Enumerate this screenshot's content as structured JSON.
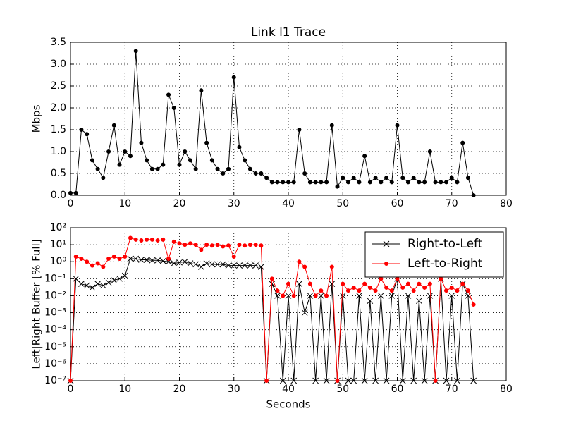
{
  "chart_data": [
    {
      "type": "line",
      "title": "Link l1 Trace",
      "y_label": "Mbps",
      "x": [
        0,
        1,
        2,
        3,
        4,
        5,
        6,
        7,
        8,
        9,
        10,
        11,
        12,
        13,
        14,
        15,
        16,
        17,
        18,
        19,
        20,
        21,
        22,
        23,
        24,
        25,
        26,
        27,
        28,
        29,
        30,
        31,
        32,
        33,
        34,
        35,
        36,
        37,
        38,
        39,
        40,
        41,
        42,
        43,
        44,
        45,
        46,
        47,
        48,
        49,
        50,
        51,
        52,
        53,
        54,
        55,
        56,
        57,
        58,
        59,
        60,
        61,
        62,
        63,
        64,
        65,
        66,
        67,
        68,
        69,
        70,
        71,
        72,
        73,
        74
      ],
      "values": [
        0.05,
        0.05,
        1.5,
        1.4,
        0.8,
        0.6,
        0.4,
        1.0,
        1.6,
        0.7,
        1.0,
        0.9,
        3.3,
        1.2,
        0.8,
        0.6,
        0.6,
        0.7,
        2.3,
        2.0,
        0.7,
        1.0,
        0.8,
        0.6,
        2.4,
        1.2,
        0.8,
        0.6,
        0.5,
        0.6,
        2.7,
        1.1,
        0.8,
        0.6,
        0.5,
        0.5,
        0.4,
        0.3,
        0.3,
        0.3,
        0.3,
        0.3,
        1.5,
        0.5,
        0.3,
        0.3,
        0.3,
        0.3,
        1.6,
        0.2,
        0.4,
        0.3,
        0.4,
        0.3,
        0.9,
        0.3,
        0.4,
        0.3,
        0.4,
        0.3,
        1.6,
        0.4,
        0.3,
        0.4,
        0.3,
        0.3,
        1.0,
        0.3,
        0.3,
        0.3,
        0.4,
        0.3,
        1.2,
        0.4,
        0.0
      ],
      "color": "#000000",
      "xlim": [
        0,
        80
      ],
      "xticks": [
        0,
        10,
        20,
        30,
        40,
        50,
        60,
        70,
        80
      ],
      "ylim": [
        0,
        3.5
      ],
      "yticks": [
        {
          "value": 0,
          "label": "0.0"
        },
        0.5,
        {
          "value": 1,
          "label": "1.0"
        },
        1.5,
        {
          "value": 2,
          "label": "2.0"
        },
        2.5,
        {
          "value": 3,
          "label": "3.0"
        },
        3.5
      ],
      "grid": true
    },
    {
      "type": "line",
      "x_label": "Seconds",
      "y_label": "Left|Right Buffer [% Full]",
      "x": [
        0,
        1,
        2,
        3,
        4,
        5,
        6,
        7,
        8,
        9,
        10,
        11,
        12,
        13,
        14,
        15,
        16,
        17,
        18,
        19,
        20,
        21,
        22,
        23,
        24,
        25,
        26,
        27,
        28,
        29,
        30,
        31,
        32,
        33,
        34,
        35,
        36,
        37,
        38,
        39,
        40,
        41,
        42,
        43,
        44,
        45,
        46,
        47,
        48,
        49,
        50,
        51,
        52,
        53,
        54,
        55,
        56,
        57,
        58,
        59,
        60,
        61,
        62,
        63,
        64,
        65,
        66,
        67,
        68,
        69,
        70,
        71,
        72,
        73,
        74
      ],
      "series": [
        {
          "name": "Right-to-Left",
          "color": "#000000",
          "marker": "x",
          "values": [
            1e-07,
            0.1,
            0.05,
            0.04,
            0.03,
            0.05,
            0.04,
            0.06,
            0.08,
            0.1,
            0.15,
            1.5,
            1.5,
            1.3,
            1.3,
            1.2,
            1.2,
            1.1,
            1.0,
            0.8,
            0.9,
            1.0,
            0.8,
            0.7,
            0.5,
            0.8,
            0.7,
            0.7,
            0.7,
            0.6,
            0.6,
            0.6,
            0.6,
            0.6,
            0.6,
            0.5,
            1e-07,
            0.05,
            0.01,
            1e-07,
            0.01,
            1e-07,
            0.05,
            0.001,
            0.01,
            1e-07,
            0.01,
            1e-07,
            0.05,
            1e-07,
            0.01,
            1e-07,
            1e-07,
            0.01,
            1e-07,
            0.005,
            1e-07,
            0.01,
            1e-07,
            0.01,
            0.1,
            1e-07,
            0.01,
            1e-07,
            0.005,
            1e-07,
            0.01,
            1e-07,
            0.1,
            1e-07,
            0.01,
            1e-07,
            0.05,
            0.01,
            1e-07
          ]
        },
        {
          "name": "Left-to-Right",
          "color": "#ff0000",
          "marker": "dot",
          "values": [
            1e-07,
            2,
            1.5,
            1,
            0.6,
            0.8,
            0.5,
            1.5,
            2,
            1.5,
            2,
            25,
            20,
            18,
            20,
            20,
            18,
            20,
            1.5,
            15,
            12,
            10,
            12,
            10,
            5,
            10,
            9,
            10,
            8,
            9,
            2,
            10,
            9,
            10,
            10,
            9,
            1e-07,
            0.1,
            0.02,
            0.01,
            0.05,
            0.01,
            1,
            0.5,
            0.05,
            0.01,
            0.02,
            0.01,
            0.5,
            1e-07,
            0.05,
            0.02,
            0.03,
            0.02,
            0.05,
            0.03,
            0.02,
            0.1,
            0.03,
            0.02,
            0.1,
            0.03,
            0.05,
            0.02,
            0.05,
            0.03,
            0.05,
            1e-07,
            0.1,
            0.02,
            0.03,
            0.02,
            0.05,
            0.02,
            0.003
          ]
        }
      ],
      "xlim": [
        0,
        80
      ],
      "xticks": [
        0,
        10,
        20,
        30,
        40,
        50,
        60,
        70,
        80
      ],
      "ylim": [
        1e-07,
        100
      ],
      "log_scale": true,
      "yticks": [
        {
          "value": 1e-07,
          "label": "10⁻⁷"
        },
        {
          "value": 1e-06,
          "label": "10⁻⁶"
        },
        {
          "value": 1e-05,
          "label": "10⁻⁵"
        },
        {
          "value": 0.0001,
          "label": "10⁻⁴"
        },
        {
          "value": 0.001,
          "label": "10⁻³"
        },
        {
          "value": 0.01,
          "label": "10⁻²"
        },
        {
          "value": 0.1,
          "label": "10⁻¹"
        },
        {
          "value": 1,
          "label": "10⁰"
        },
        {
          "value": 10,
          "label": "10¹"
        },
        {
          "value": 100,
          "label": "10²"
        }
      ],
      "grid": true,
      "legend": "upper-right"
    }
  ]
}
